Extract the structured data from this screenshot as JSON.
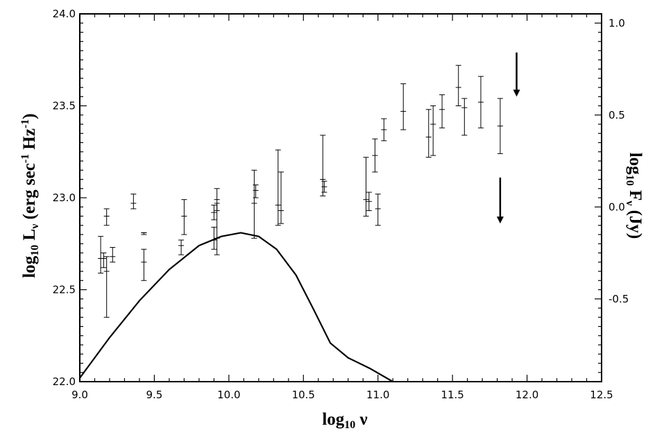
{
  "chart_data": {
    "type": "scatter",
    "xlabel": {
      "main": "log",
      "sub": "10",
      "symbol": " ν"
    },
    "ylabel": {
      "main": "log",
      "sub": "10",
      "after": " L",
      "sub2": "ν",
      "rest": " (erg sec",
      "sup1": "-1",
      "mid": " Hz",
      "sup2": "-1",
      "end": ")"
    },
    "y2label": {
      "main": "log",
      "sub": "10",
      "after": " F",
      "sub2": "ν",
      "rest": " (Jy)"
    },
    "xlim": [
      9.0,
      12.5
    ],
    "ylim": [
      22.0,
      24.0
    ],
    "y2lim": [
      -0.95,
      1.05
    ],
    "x_ticks": [
      "9.0",
      "9.5",
      "10.0",
      "10.5",
      "11.0",
      "11.5",
      "12.0",
      "12.5"
    ],
    "y_ticks": [
      "22.0",
      "22.5",
      "23.0",
      "23.5",
      "24.0"
    ],
    "y2_ticks": [
      "-0.5",
      "0.0",
      "0.5",
      "1.0"
    ],
    "grid": false,
    "error_bars": [
      {
        "x": 9.14,
        "y": 22.67,
        "lo": 22.59,
        "hi": 22.79
      },
      {
        "x": 9.16,
        "y": 22.67,
        "lo": 22.62,
        "hi": 22.7
      },
      {
        "x": 9.18,
        "y": 22.9,
        "lo": 22.85,
        "hi": 22.94
      },
      {
        "x": 9.18,
        "y": 22.6,
        "lo": 22.35,
        "hi": 22.68
      },
      {
        "x": 9.22,
        "y": 22.68,
        "lo": 22.65,
        "hi": 22.73
      },
      {
        "x": 9.36,
        "y": 22.97,
        "lo": 22.94,
        "hi": 23.02
      },
      {
        "x": 9.43,
        "y": 22.81,
        "lo": 22.8,
        "hi": 22.81
      },
      {
        "x": 9.43,
        "y": 22.65,
        "lo": 22.55,
        "hi": 22.72
      },
      {
        "x": 9.68,
        "y": 22.74,
        "lo": 22.69,
        "hi": 22.77
      },
      {
        "x": 9.7,
        "y": 22.9,
        "lo": 22.8,
        "hi": 22.99
      },
      {
        "x": 9.9,
        "y": 22.92,
        "lo": 22.88,
        "hi": 22.96
      },
      {
        "x": 9.9,
        "y": 22.77,
        "lo": 22.72,
        "hi": 22.84
      },
      {
        "x": 9.92,
        "y": 22.99,
        "lo": 22.93,
        "hi": 23.05
      },
      {
        "x": 9.92,
        "y": 22.78,
        "lo": 22.69,
        "hi": 22.97
      },
      {
        "x": 10.17,
        "y": 22.97,
        "lo": 22.78,
        "hi": 23.15
      },
      {
        "x": 10.18,
        "y": 23.04,
        "lo": 23.0,
        "hi": 23.07
      },
      {
        "x": 10.33,
        "y": 22.96,
        "lo": 22.85,
        "hi": 23.26
      },
      {
        "x": 10.35,
        "y": 22.93,
        "lo": 22.86,
        "hi": 23.14
      },
      {
        "x": 10.63,
        "y": 23.1,
        "lo": 23.01,
        "hi": 23.34
      },
      {
        "x": 10.64,
        "y": 23.06,
        "lo": 23.03,
        "hi": 23.09
      },
      {
        "x": 10.92,
        "y": 22.99,
        "lo": 22.9,
        "hi": 23.22
      },
      {
        "x": 10.94,
        "y": 22.98,
        "lo": 22.93,
        "hi": 23.03
      },
      {
        "x": 10.98,
        "y": 23.23,
        "lo": 23.14,
        "hi": 23.32
      },
      {
        "x": 11.0,
        "y": 22.94,
        "lo": 22.85,
        "hi": 23.02
      },
      {
        "x": 11.04,
        "y": 23.37,
        "lo": 23.31,
        "hi": 23.43
      },
      {
        "x": 11.17,
        "y": 23.47,
        "lo": 23.37,
        "hi": 23.62
      },
      {
        "x": 11.34,
        "y": 23.33,
        "lo": 23.22,
        "hi": 23.48
      },
      {
        "x": 11.37,
        "y": 23.4,
        "lo": 23.23,
        "hi": 23.5
      },
      {
        "x": 11.43,
        "y": 23.48,
        "lo": 23.38,
        "hi": 23.56
      },
      {
        "x": 11.54,
        "y": 23.6,
        "lo": 23.5,
        "hi": 23.72
      },
      {
        "x": 11.58,
        "y": 23.49,
        "lo": 23.34,
        "hi": 23.54
      },
      {
        "x": 11.69,
        "y": 23.52,
        "lo": 23.38,
        "hi": 23.66
      },
      {
        "x": 11.82,
        "y": 23.39,
        "lo": 23.24,
        "hi": 23.54
      }
    ],
    "upper_limits": [
      {
        "x": 11.93,
        "y": 23.79,
        "to": 23.55
      },
      {
        "x": 11.82,
        "y": 23.11,
        "to": 22.86
      }
    ],
    "curve": {
      "x": [
        9.0,
        9.2,
        9.4,
        9.6,
        9.8,
        9.95,
        10.08,
        10.2,
        10.32,
        10.45,
        10.57,
        10.68,
        10.8,
        10.95,
        11.1
      ],
      "y": [
        22.02,
        22.24,
        22.44,
        22.61,
        22.74,
        22.79,
        22.81,
        22.79,
        22.72,
        22.58,
        22.39,
        22.21,
        22.13,
        22.07,
        22.0
      ]
    }
  }
}
